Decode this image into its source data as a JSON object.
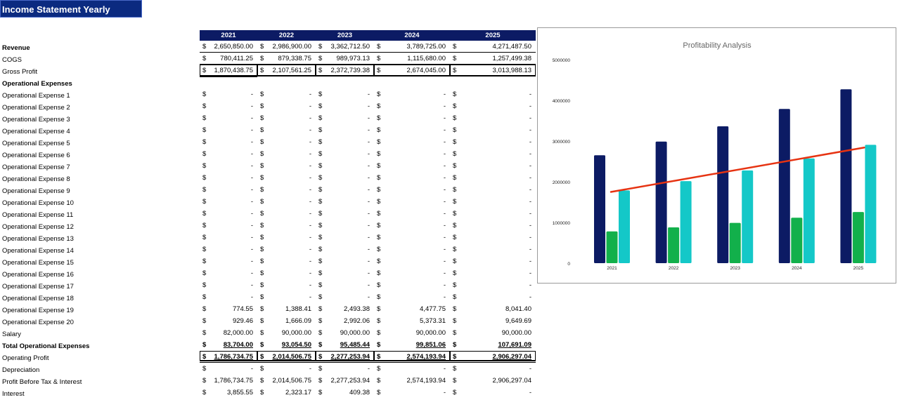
{
  "sheet_title": "Income Statement Yearly",
  "years": [
    "2021",
    "2022",
    "2023",
    "2024",
    "2025"
  ],
  "currency_symbol": "$",
  "rows": [
    {
      "label": "Revenue",
      "bold_label": true,
      "values": [
        "2,650,850.00",
        "2,986,900.00",
        "3,362,712.50",
        "3,789,725.00",
        "4,271,487.50"
      ]
    },
    {
      "label": "COGS",
      "bold_label": false,
      "values": [
        "780,411.25",
        "879,338.75",
        "989,973.13",
        "1,115,680.00",
        "1,257,499.38"
      ]
    },
    {
      "label": "Gross Profit",
      "bold_label": false,
      "values": [
        "1,870,438.75",
        "2,107,561.25",
        "2,372,739.38",
        "2,674,045.00",
        "3,013,988.13"
      ]
    },
    {
      "label": "Operational Expenses",
      "bold_label": true,
      "values": null
    },
    {
      "label": "Operational Expense 1",
      "bold_label": false,
      "values": [
        "-",
        "-",
        "-",
        "-",
        "-"
      ]
    },
    {
      "label": "Operational Expense 2",
      "bold_label": false,
      "values": [
        "-",
        "-",
        "-",
        "-",
        "-"
      ]
    },
    {
      "label": "Operational Expense 3",
      "bold_label": false,
      "values": [
        "-",
        "-",
        "-",
        "-",
        "-"
      ]
    },
    {
      "label": "Operational Expense 4",
      "bold_label": false,
      "values": [
        "-",
        "-",
        "-",
        "-",
        "-"
      ]
    },
    {
      "label": "Operational Expense 5",
      "bold_label": false,
      "values": [
        "-",
        "-",
        "-",
        "-",
        "-"
      ]
    },
    {
      "label": "Operational Expense 6",
      "bold_label": false,
      "values": [
        "-",
        "-",
        "-",
        "-",
        "-"
      ]
    },
    {
      "label": "Operational Expense 7",
      "bold_label": false,
      "values": [
        "-",
        "-",
        "-",
        "-",
        "-"
      ]
    },
    {
      "label": "Operational Expense 8",
      "bold_label": false,
      "values": [
        "-",
        "-",
        "-",
        "-",
        "-"
      ]
    },
    {
      "label": "Operational Expense 9",
      "bold_label": false,
      "values": [
        "-",
        "-",
        "-",
        "-",
        "-"
      ]
    },
    {
      "label": "Operational Expense 10",
      "bold_label": false,
      "values": [
        "-",
        "-",
        "-",
        "-",
        "-"
      ]
    },
    {
      "label": "Operational Expense 11",
      "bold_label": false,
      "values": [
        "-",
        "-",
        "-",
        "-",
        "-"
      ]
    },
    {
      "label": "Operational Expense 12",
      "bold_label": false,
      "values": [
        "-",
        "-",
        "-",
        "-",
        "-"
      ]
    },
    {
      "label": "Operational Expense 13",
      "bold_label": false,
      "values": [
        "-",
        "-",
        "-",
        "-",
        "-"
      ]
    },
    {
      "label": "Operational Expense 14",
      "bold_label": false,
      "values": [
        "-",
        "-",
        "-",
        "-",
        "-"
      ]
    },
    {
      "label": "Operational Expense 15",
      "bold_label": false,
      "values": [
        "-",
        "-",
        "-",
        "-",
        "-"
      ]
    },
    {
      "label": "Operational Expense 16",
      "bold_label": false,
      "values": [
        "-",
        "-",
        "-",
        "-",
        "-"
      ]
    },
    {
      "label": "Operational Expense 17",
      "bold_label": false,
      "values": [
        "-",
        "-",
        "-",
        "-",
        "-"
      ]
    },
    {
      "label": "Operational Expense 18",
      "bold_label": false,
      "values": [
        "-",
        "-",
        "-",
        "-",
        "-"
      ]
    },
    {
      "label": "Operational Expense 19",
      "bold_label": false,
      "values": [
        "774.55",
        "1,388.41",
        "2,493.38",
        "4,477.75",
        "8,041.40"
      ]
    },
    {
      "label": "Operational Expense 20",
      "bold_label": false,
      "values": [
        "929.46",
        "1,666.09",
        "2,992.06",
        "5,373.31",
        "9,649.69"
      ]
    },
    {
      "label": "Salary",
      "bold_label": false,
      "values": [
        "82,000.00",
        "90,000.00",
        "90,000.00",
        "90,000.00",
        "90,000.00"
      ]
    },
    {
      "label": "Total Operational Expenses",
      "bold_label": true,
      "values": [
        "83,704.00",
        "93,054.50",
        "95,485.44",
        "99,851.06",
        "107,691.09"
      ]
    },
    {
      "label": "Operating Profit",
      "bold_label": false,
      "values": [
        "1,786,734.75",
        "2,014,506.75",
        "2,277,253.94",
        "2,574,193.94",
        "2,906,297.04"
      ]
    },
    {
      "label": "Depreciation",
      "bold_label": false,
      "values": [
        "-",
        "-",
        "-",
        "-",
        "-"
      ]
    },
    {
      "label": "Profit Before Tax & Interest",
      "bold_label": false,
      "values": [
        "1,786,734.75",
        "2,014,506.75",
        "2,277,253.94",
        "2,574,193.94",
        "2,906,297.04"
      ]
    },
    {
      "label": "Interest",
      "bold_label": false,
      "values": [
        "3,855.55",
        "2,323.17",
        "409.38",
        "-",
        "-"
      ]
    }
  ],
  "chart_data": {
    "type": "bar",
    "title": "Profitability Analysis",
    "categories": [
      "2021",
      "2022",
      "2023",
      "2024",
      "2025"
    ],
    "ylim": [
      0,
      5000000
    ],
    "yticks": [
      0,
      1000000,
      2000000,
      3000000,
      4000000,
      5000000
    ],
    "grid": false,
    "series": [
      {
        "values": [
          2650850,
          2986900,
          3362712.5,
          3789725,
          4271487.5
        ],
        "color": "#0c1b64",
        "kind": "bar"
      },
      {
        "values": [
          780411.25,
          879338.75,
          989973.13,
          1115680,
          1257499.38
        ],
        "color": "#12b04b",
        "kind": "bar"
      },
      {
        "values": [
          1786734.75,
          2014506.75,
          2277253.94,
          2574193.94,
          2906297.04
        ],
        "color": "#14c8c8",
        "kind": "bar"
      },
      {
        "values": [
          1750000,
          2020000,
          2290000,
          2560000,
          2840000
        ],
        "color": "#e63312",
        "kind": "line"
      }
    ]
  }
}
